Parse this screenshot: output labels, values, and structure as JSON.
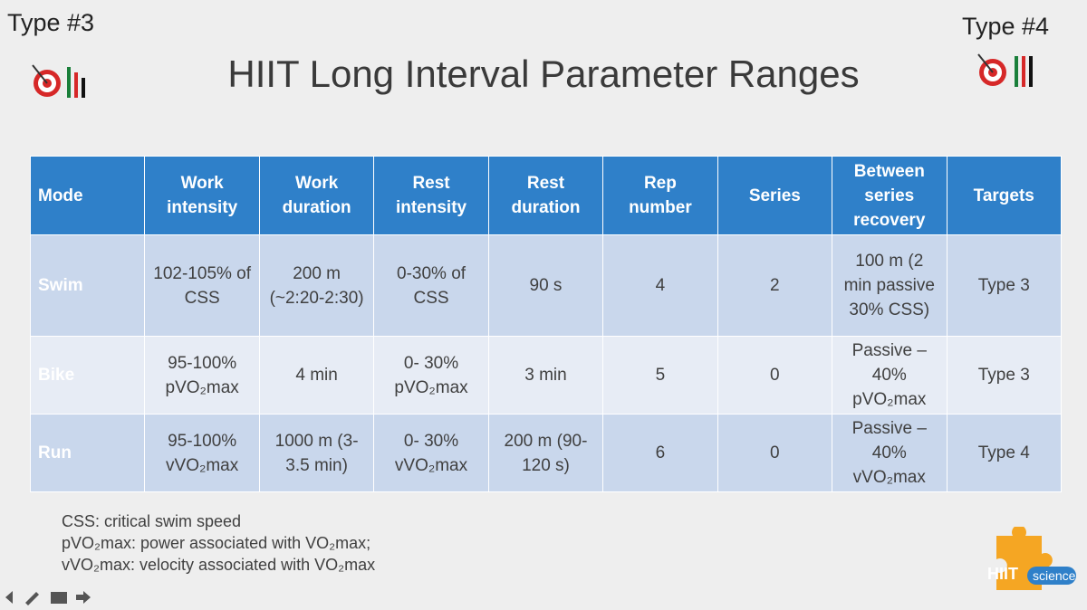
{
  "header": {
    "left_label": "Type #3",
    "title": "HIIT Long Interval Parameter Ranges",
    "right_label": "Type #4"
  },
  "table": {
    "columns": [
      "Mode",
      "Work intensity",
      "Work duration",
      "Rest intensity",
      "Rest duration",
      "Rep number",
      "Series",
      "Between series recovery",
      "Targets"
    ],
    "rows": [
      [
        "Swim",
        "102-105% of CSS",
        "200 m (~2:20-2:30)",
        "0-30% of CSS",
        "90 s",
        "4",
        "2",
        "100 m (2 min passive 30% CSS)",
        "Type 3"
      ],
      [
        "Bike",
        "95-100% pVO₂max",
        "4 min",
        "0- 30% pVO₂max",
        "3 min",
        "5",
        "0",
        "Passive – 40% pVO₂max",
        "Type 3"
      ],
      [
        "Run",
        "95-100% vVO₂max",
        "1000 m (3-3.5 min)",
        "0- 30% vVO₂max",
        "200 m (90-120 s)",
        "6",
        "0",
        "Passive – 40% vVO₂max",
        "Type 4"
      ]
    ]
  },
  "notes": [
    "CSS: critical swim speed",
    "pVO₂max: power associated with VO₂max;",
    "vVO₂max: velocity associated with VO₂max"
  ],
  "logo": {
    "brand": "HIIT",
    "sub": "science"
  }
}
